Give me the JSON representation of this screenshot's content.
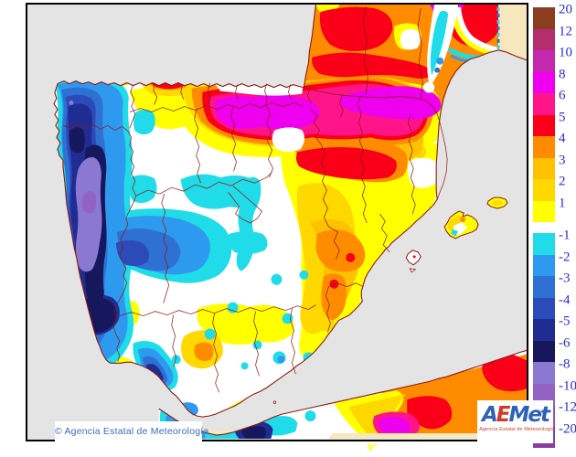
{
  "map": {
    "meridian_label": "0°",
    "region": "Iberian Peninsula and Balearic Islands"
  },
  "palette": {
    "p20": "#8B3E1F",
    "p12": "#B42E6F",
    "p10": "#C428AE",
    "p8": "#EE00EE",
    "p6": "#FF1489",
    "p5": "#F90018",
    "p4": "#FF8C00",
    "p3": "#FFC100",
    "p2": "#FFD800",
    "p1": "#FFFF00",
    "m1": "#20DCE8",
    "m2": "#2E9AEF",
    "m3": "#2E71D2",
    "m4": "#2B4BBB",
    "m5": "#1F2D92",
    "m6": "#16175C",
    "m8": "#8A78D2",
    "m10": "#9263C4",
    "m12": "#9751B2",
    "m20": "#8C3C9E",
    "sea": "#E4E4E4",
    "outside": "#F7E7BE",
    "border": "#8B1A10",
    "near_zero": "#FFFFFF"
  },
  "colorbar": {
    "positive": [
      {
        "label": "20",
        "color": "#8B3E1F"
      },
      {
        "label": "12",
        "color": "#B42E6F"
      },
      {
        "label": "10",
        "color": "#C428AE"
      },
      {
        "label": "8",
        "color": "#EE00EE"
      },
      {
        "label": "6",
        "color": "#FF1489"
      },
      {
        "label": "5",
        "color": "#F90018"
      },
      {
        "label": "4",
        "color": "#FF8C00"
      },
      {
        "label": "3",
        "color": "#FFC100"
      },
      {
        "label": "2",
        "color": "#FFD800"
      },
      {
        "label": "1",
        "color": "#FFFF00"
      }
    ],
    "negative": [
      {
        "label": "-1",
        "color": "#20DCE8"
      },
      {
        "label": "-2",
        "color": "#2E9AEF"
      },
      {
        "label": "-3",
        "color": "#2E71D2"
      },
      {
        "label": "-4",
        "color": "#2B4BBB"
      },
      {
        "label": "-5",
        "color": "#1F2D92"
      },
      {
        "label": "-6",
        "color": "#16175C"
      },
      {
        "label": "-8",
        "color": "#8A78D2"
      },
      {
        "label": "-10",
        "color": "#9263C4"
      },
      {
        "label": "-12",
        "color": "#9751B2"
      },
      {
        "label": "-20",
        "color": "#8C3C9E"
      }
    ]
  },
  "attribution": {
    "copyright": "© Agencia Estatal de Meteorología"
  },
  "logo": {
    "a": "A",
    "e": "E",
    "met": "Met",
    "subtitle": "Agencia Estatal de Meteorología"
  }
}
